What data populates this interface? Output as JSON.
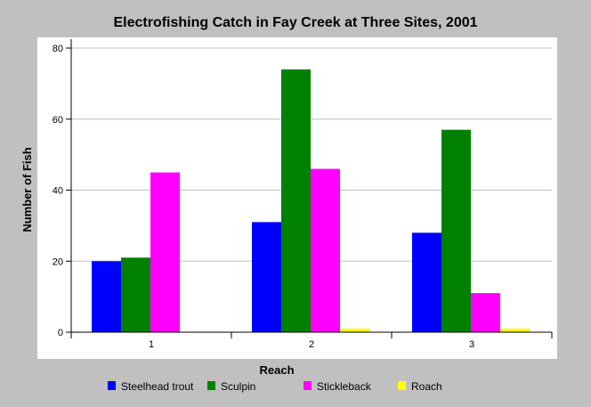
{
  "chart_data": {
    "type": "bar",
    "title": "Electrofishing Catch in Fay Creek at Three Sites, 2001",
    "xlabel": "Reach",
    "ylabel": "Number of Fish",
    "categories": [
      "1",
      "2",
      "3"
    ],
    "ylim": [
      0,
      80
    ],
    "yticks": [
      0,
      20,
      40,
      60,
      80
    ],
    "grid": true,
    "legend_position": "bottom",
    "series": [
      {
        "name": "Steelhead trout",
        "color": "#0000ff",
        "values": [
          20,
          31,
          28
        ]
      },
      {
        "name": "Sculpin",
        "color": "#008000",
        "values": [
          21,
          74,
          57
        ]
      },
      {
        "name": "Stickleback",
        "color": "#ff00ff",
        "values": [
          45,
          46,
          11
        ]
      },
      {
        "name": "Roach",
        "color": "#ffff00",
        "values": [
          0,
          1,
          1
        ]
      }
    ]
  }
}
